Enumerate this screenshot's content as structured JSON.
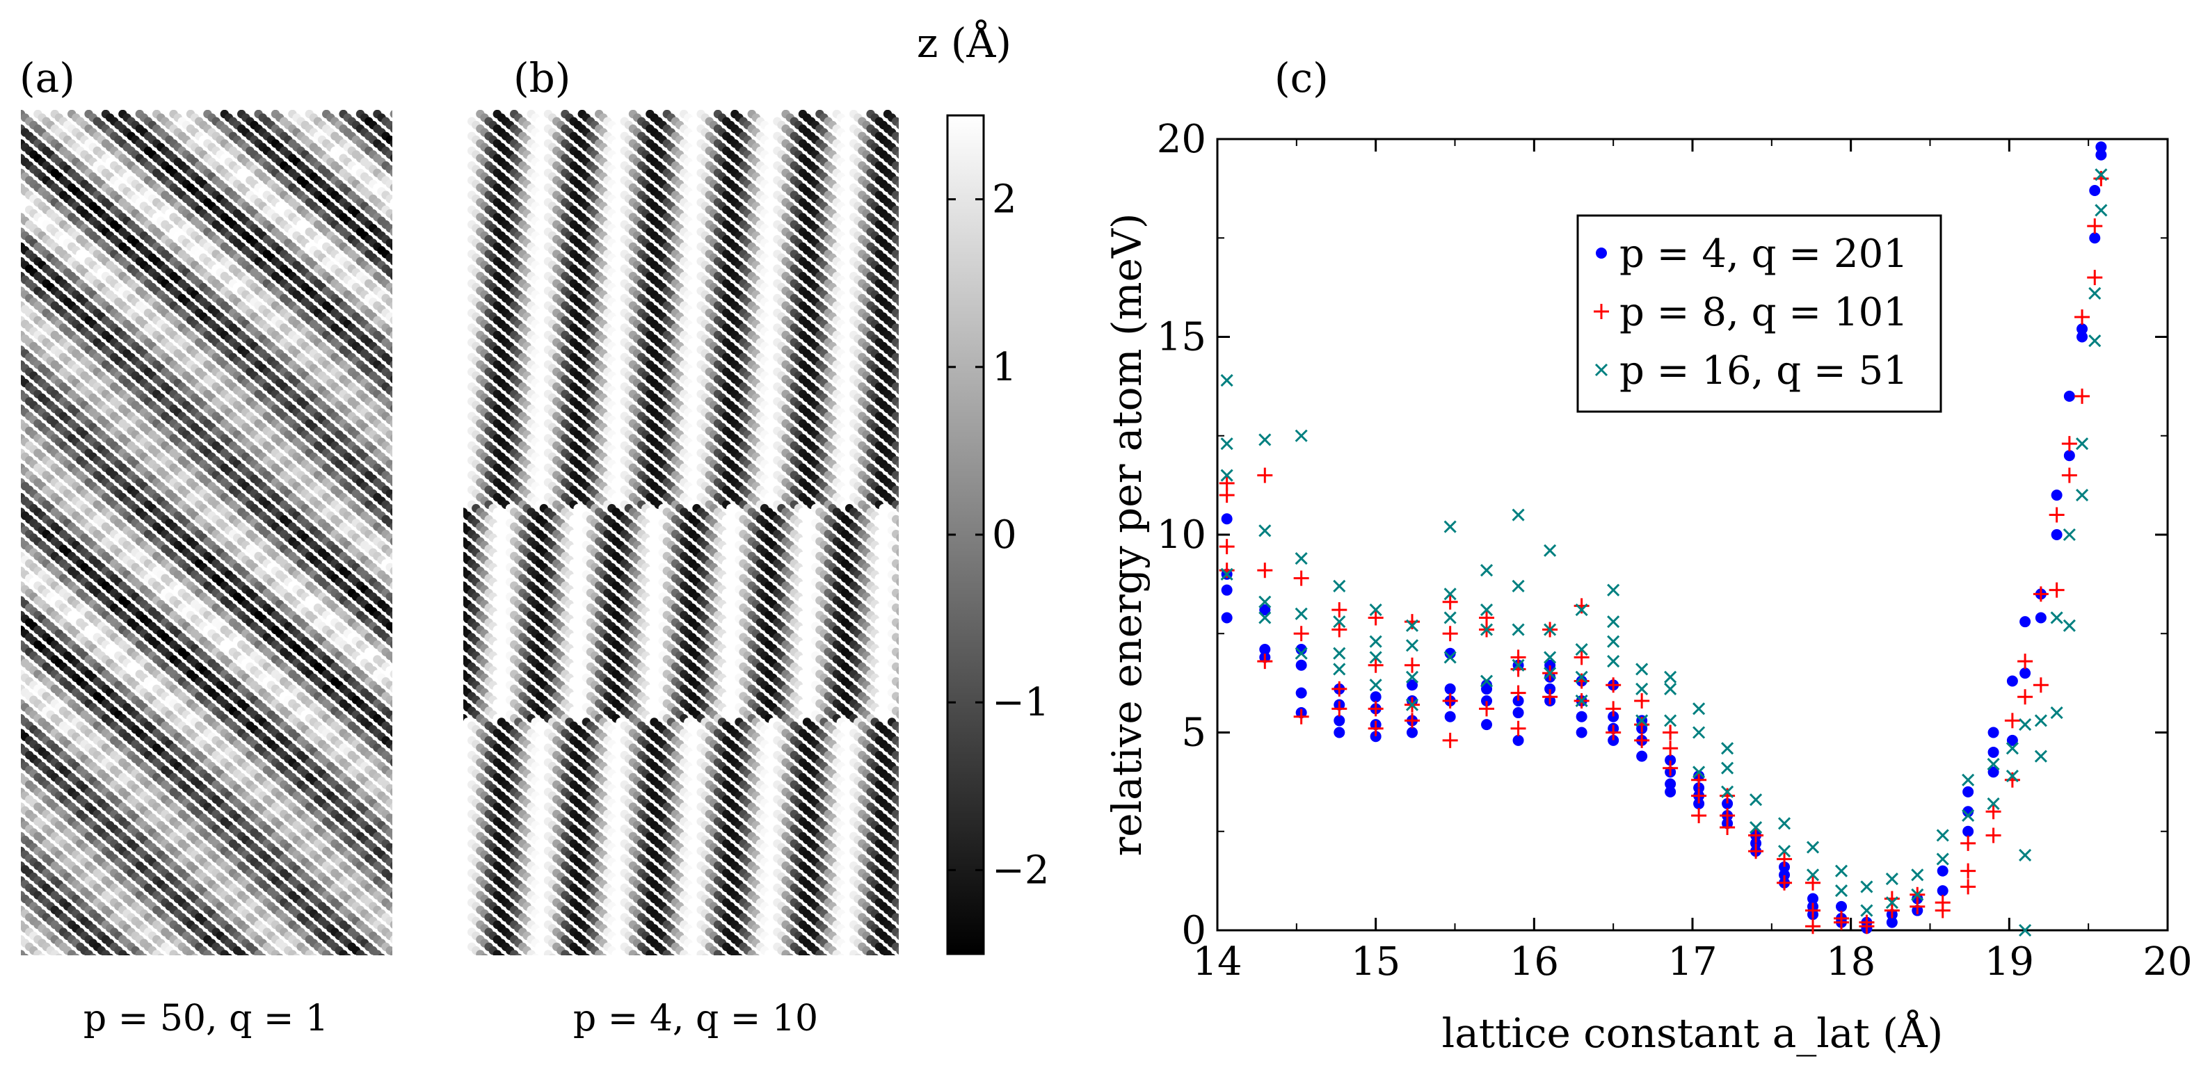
{
  "panels": {
    "a": {
      "label": "(a)",
      "caption": "p = 50, q = 1"
    },
    "b": {
      "label": "(b)",
      "caption": "p = 4, q = 10"
    },
    "c": {
      "label": "(c)"
    }
  },
  "colorbar": {
    "title": "z (Å)",
    "ticks": [
      {
        "value": 2,
        "label": "2"
      },
      {
        "value": 1,
        "label": "1"
      },
      {
        "value": 0,
        "label": "0"
      },
      {
        "value": -1,
        "label": "−1"
      },
      {
        "value": -2,
        "label": "−2"
      }
    ],
    "range": [
      -2.5,
      2.5
    ],
    "colormap": "grayscale black-to-white"
  },
  "chart_data": {
    "type": "scatter",
    "xlabel": "lattice constant a_lat (Å)",
    "ylabel": "relative energy per atom (meV)",
    "xlim": [
      14,
      20
    ],
    "ylim": [
      0,
      20
    ],
    "xticks": [
      14,
      15,
      16,
      17,
      18,
      19,
      20
    ],
    "yticks": [
      0,
      5,
      10,
      15,
      20
    ],
    "grid": false,
    "legend_position": "top-center",
    "series": [
      {
        "name": "p = 4, q = 201",
        "marker": "dot",
        "color": "#0000ff",
        "x": [
          14.06,
          14.06,
          14.06,
          14.06,
          14.3,
          14.3,
          14.3,
          14.53,
          14.53,
          14.53,
          14.53,
          14.77,
          14.77,
          14.77,
          14.77,
          15.0,
          15.0,
          15.0,
          15.0,
          15.23,
          15.23,
          15.23,
          15.23,
          15.47,
          15.47,
          15.47,
          15.47,
          15.7,
          15.7,
          15.7,
          15.7,
          15.9,
          15.9,
          15.9,
          15.9,
          16.1,
          16.1,
          16.1,
          16.1,
          16.3,
          16.3,
          16.3,
          16.3,
          16.5,
          16.5,
          16.5,
          16.5,
          16.68,
          16.68,
          16.68,
          16.68,
          16.86,
          16.86,
          16.86,
          16.86,
          17.04,
          17.04,
          17.04,
          17.04,
          17.22,
          17.22,
          17.22,
          17.4,
          17.4,
          17.4,
          17.58,
          17.58,
          17.58,
          17.76,
          17.76,
          17.76,
          17.94,
          17.94,
          17.94,
          18.1,
          18.1,
          18.26,
          18.26,
          18.42,
          18.42,
          18.58,
          18.58,
          18.74,
          18.74,
          18.74,
          18.9,
          18.9,
          18.9,
          19.02,
          19.02,
          19.1,
          19.1,
          19.2,
          19.2,
          19.3,
          19.3,
          19.38,
          19.38,
          19.46,
          19.46,
          19.54,
          19.54,
          19.58,
          19.58
        ],
        "y": [
          7.9,
          8.6,
          9.0,
          10.4,
          6.9,
          7.1,
          8.1,
          5.5,
          6.0,
          6.7,
          7.1,
          5.0,
          5.3,
          5.7,
          6.1,
          4.9,
          5.2,
          5.6,
          5.9,
          5.0,
          5.3,
          5.8,
          6.2,
          5.4,
          5.8,
          6.1,
          7.0,
          5.2,
          5.8,
          6.1,
          6.2,
          4.8,
          5.5,
          5.8,
          6.7,
          5.8,
          6.1,
          6.4,
          6.7,
          5.0,
          5.4,
          5.8,
          6.3,
          4.8,
          5.1,
          5.4,
          6.2,
          4.4,
          4.8,
          5.1,
          5.3,
          3.5,
          3.7,
          4.0,
          4.3,
          3.2,
          3.4,
          3.6,
          3.9,
          2.7,
          2.9,
          3.2,
          2.0,
          2.2,
          2.4,
          1.2,
          1.4,
          1.6,
          0.4,
          0.6,
          0.8,
          0.2,
          0.3,
          0.6,
          0.05,
          0.2,
          0.2,
          0.4,
          0.5,
          0.8,
          1.0,
          1.5,
          2.5,
          3.0,
          3.5,
          4.0,
          4.5,
          5.0,
          4.8,
          6.3,
          6.5,
          7.8,
          7.9,
          8.5,
          10.0,
          11.0,
          12.0,
          13.5,
          15.0,
          15.2,
          17.5,
          18.7,
          19.6,
          19.8
        ]
      },
      {
        "name": "p = 8, q = 101",
        "marker": "plus",
        "color": "#ff0000",
        "x": [
          14.06,
          14.06,
          14.06,
          14.06,
          14.3,
          14.3,
          14.3,
          14.53,
          14.53,
          14.53,
          14.77,
          14.77,
          14.77,
          14.77,
          15.0,
          15.0,
          15.0,
          15.0,
          15.23,
          15.23,
          15.23,
          15.23,
          15.47,
          15.47,
          15.47,
          15.47,
          15.7,
          15.7,
          15.7,
          15.9,
          15.9,
          15.9,
          15.9,
          16.1,
          16.1,
          16.1,
          16.3,
          16.3,
          16.3,
          16.3,
          16.5,
          16.5,
          16.5,
          16.68,
          16.68,
          16.68,
          16.86,
          16.86,
          16.86,
          16.86,
          17.04,
          17.04,
          17.04,
          17.22,
          17.22,
          17.22,
          17.4,
          17.4,
          17.58,
          17.58,
          17.76,
          17.76,
          17.76,
          17.94,
          17.94,
          18.1,
          18.1,
          18.26,
          18.26,
          18.42,
          18.42,
          18.58,
          18.58,
          18.74,
          18.74,
          18.74,
          18.9,
          18.9,
          19.02,
          19.02,
          19.1,
          19.1,
          19.2,
          19.2,
          19.3,
          19.3,
          19.38,
          19.38,
          19.46,
          19.46,
          19.54,
          19.54,
          19.58
        ],
        "y": [
          9.1,
          9.7,
          11.0,
          11.3,
          6.8,
          9.1,
          11.5,
          5.4,
          7.5,
          8.9,
          5.6,
          6.1,
          7.6,
          8.1,
          5.1,
          5.6,
          6.7,
          7.9,
          5.3,
          5.7,
          6.7,
          7.8,
          4.8,
          5.8,
          7.5,
          8.3,
          5.6,
          7.6,
          7.9,
          5.1,
          6.0,
          6.6,
          6.9,
          5.9,
          6.5,
          7.6,
          5.8,
          6.3,
          6.9,
          8.2,
          5.0,
          5.6,
          6.2,
          4.8,
          5.2,
          5.8,
          4.1,
          4.6,
          5.0,
          5.0,
          2.9,
          3.4,
          3.8,
          2.6,
          2.9,
          3.4,
          2.0,
          2.4,
          1.2,
          1.8,
          0.1,
          0.5,
          1.2,
          0.2,
          0.3,
          0.1,
          0.2,
          0.5,
          0.8,
          0.6,
          0.9,
          0.5,
          0.7,
          1.1,
          1.5,
          2.2,
          2.4,
          3.0,
          3.8,
          5.3,
          5.9,
          6.8,
          6.2,
          8.5,
          8.6,
          10.5,
          11.5,
          12.3,
          13.5,
          15.5,
          16.5,
          17.8,
          19.0
        ]
      },
      {
        "name": "p = 16, q = 51",
        "marker": "cross",
        "color": "#008080",
        "x": [
          14.06,
          14.06,
          14.06,
          14.06,
          14.3,
          14.3,
          14.3,
          14.3,
          14.53,
          14.53,
          14.53,
          14.53,
          14.77,
          14.77,
          14.77,
          14.77,
          15.0,
          15.0,
          15.0,
          15.0,
          15.23,
          15.23,
          15.23,
          15.23,
          15.47,
          15.47,
          15.47,
          15.47,
          15.7,
          15.7,
          15.7,
          15.7,
          15.9,
          15.9,
          15.9,
          15.9,
          16.1,
          16.1,
          16.1,
          16.1,
          16.3,
          16.3,
          16.3,
          16.3,
          16.5,
          16.5,
          16.5,
          16.5,
          16.68,
          16.68,
          16.68,
          16.86,
          16.86,
          16.86,
          17.04,
          17.04,
          17.04,
          17.22,
          17.22,
          17.22,
          17.4,
          17.4,
          17.58,
          17.58,
          17.76,
          17.76,
          17.94,
          17.94,
          18.1,
          18.1,
          18.26,
          18.26,
          18.42,
          18.42,
          18.58,
          18.58,
          18.74,
          18.74,
          18.9,
          18.9,
          19.02,
          19.02,
          19.1,
          19.1,
          19.1,
          19.2,
          19.2,
          19.3,
          19.3,
          19.38,
          19.38,
          19.46,
          19.46,
          19.54,
          19.54,
          19.58,
          19.58
        ],
        "y": [
          9.0,
          11.5,
          12.3,
          13.9,
          7.9,
          8.3,
          10.1,
          12.4,
          7.0,
          8.0,
          9.4,
          12.5,
          6.6,
          7.0,
          7.8,
          8.7,
          6.2,
          6.9,
          7.3,
          8.1,
          5.7,
          6.4,
          7.2,
          7.7,
          6.9,
          7.9,
          8.5,
          10.2,
          6.3,
          7.6,
          8.1,
          9.1,
          6.7,
          7.6,
          8.7,
          10.5,
          6.5,
          6.9,
          7.6,
          9.6,
          5.8,
          6.4,
          7.1,
          8.1,
          6.8,
          7.3,
          7.8,
          8.6,
          5.3,
          6.1,
          6.6,
          5.3,
          6.1,
          6.4,
          4.0,
          5.0,
          5.6,
          3.5,
          4.1,
          4.6,
          2.6,
          3.3,
          2.0,
          2.7,
          1.4,
          2.1,
          1.0,
          1.5,
          0.5,
          1.1,
          0.7,
          1.3,
          0.9,
          1.4,
          1.8,
          2.4,
          2.9,
          3.8,
          3.2,
          4.2,
          3.9,
          4.6,
          0.0,
          1.9,
          5.2,
          4.4,
          5.3,
          5.5,
          7.9,
          7.7,
          10.0,
          11.0,
          12.3,
          14.9,
          16.1,
          18.2,
          19.1
        ]
      }
    ]
  }
}
